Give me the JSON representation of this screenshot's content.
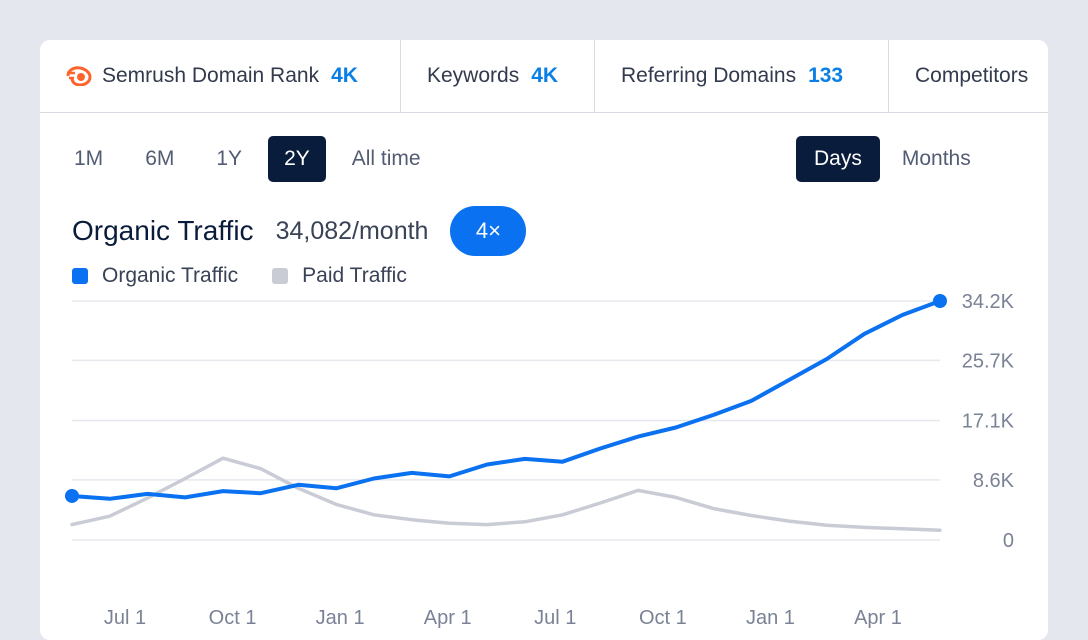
{
  "tabs": [
    {
      "label": "Semrush Domain Rank",
      "value": "4K"
    },
    {
      "label": "Keywords",
      "value": "4K"
    },
    {
      "label": "Referring Domains",
      "value": "133"
    },
    {
      "label": "Competitors",
      "value": ""
    }
  ],
  "ranges": [
    "1M",
    "6M",
    "1Y",
    "2Y",
    "All time"
  ],
  "active_range": "2Y",
  "granularity": [
    "Days",
    "Months"
  ],
  "active_granularity": "Days",
  "metric": {
    "name": "Organic Traffic",
    "value": "34,082/month",
    "badge": "4×"
  },
  "legend": [
    {
      "label": "Organic Traffic",
      "color": "#0a71f0"
    },
    {
      "label": "Paid Traffic",
      "color": "#c9ccd4"
    }
  ],
  "colors": {
    "accent": "#0a7fe6",
    "dark": "#0a1c3b",
    "organic": "#0a71f0",
    "paid": "#c9ccd4"
  },
  "chart_data": {
    "type": "line",
    "title": "",
    "x_tick_labels": [
      "Jul 1",
      "Oct 1",
      "Jan 1",
      "Apr 1",
      "Jul 1",
      "Oct 1",
      "Jan 1",
      "Apr 1"
    ],
    "y_tick_labels": [
      "34.2K",
      "25.7K",
      "17.1K",
      "8.6K",
      "0"
    ],
    "y_ticks": [
      34200,
      25700,
      17100,
      8600,
      0
    ],
    "ylim": [
      0,
      34200
    ],
    "xlim": [
      0,
      23
    ],
    "grid": true,
    "legend_position": "top-left",
    "series": [
      {
        "name": "Organic Traffic",
        "color": "#0a71f0",
        "x": [
          0,
          1,
          2,
          3,
          4,
          5,
          6,
          7,
          8,
          9,
          10,
          11,
          12,
          13,
          14,
          15,
          16,
          17,
          18,
          19,
          20,
          21,
          22,
          23
        ],
        "values": [
          6300,
          5900,
          6600,
          6100,
          7000,
          6700,
          7900,
          7400,
          8800,
          9600,
          9100,
          10800,
          11600,
          11200,
          13100,
          14800,
          16100,
          17900,
          19900,
          22900,
          25900,
          29500,
          32200,
          34200
        ]
      },
      {
        "name": "Paid Traffic",
        "color": "#c9ccd4",
        "x": [
          0,
          1,
          2,
          3,
          4,
          5,
          6,
          7,
          8,
          9,
          10,
          11,
          12,
          13,
          14,
          15,
          16,
          17,
          18,
          19,
          20,
          21,
          22,
          23
        ],
        "values": [
          2200,
          3400,
          6000,
          8800,
          11700,
          10200,
          7400,
          5100,
          3600,
          2900,
          2400,
          2200,
          2600,
          3600,
          5300,
          7100,
          6100,
          4500,
          3500,
          2700,
          2100,
          1800,
          1600,
          1400
        ]
      }
    ]
  }
}
